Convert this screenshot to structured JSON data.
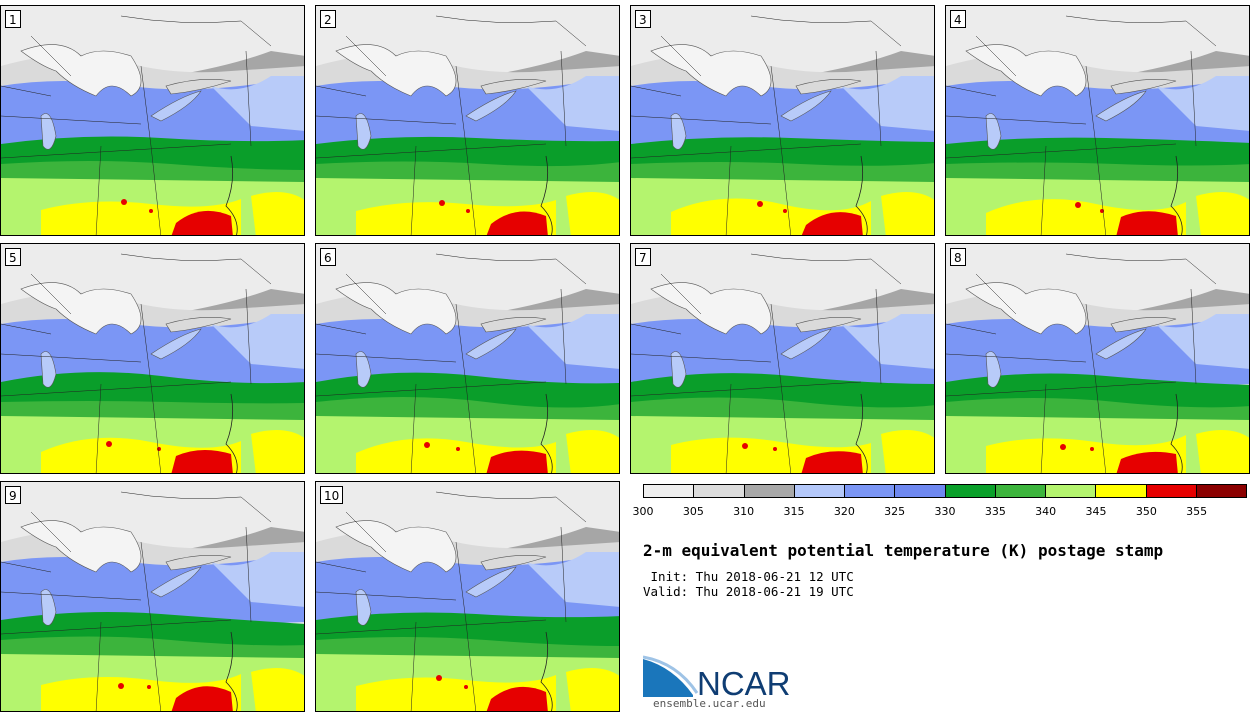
{
  "members": [
    "1",
    "2",
    "3",
    "4",
    "5",
    "6",
    "7",
    "8",
    "9",
    "10"
  ],
  "colorbar": {
    "ticks": [
      "300",
      "305",
      "310",
      "315",
      "320",
      "325",
      "330",
      "335",
      "340",
      "345",
      "350",
      "355"
    ],
    "colors": [
      "#efefef",
      "#dcdcdc",
      "#a8a8a8",
      "#b4c8fa",
      "#7b96f5",
      "#6e88f0",
      "#0aa02a",
      "#3cb43c",
      "#b4f46e",
      "#ffff00",
      "#e60000",
      "#8b0000"
    ]
  },
  "title": "2-m equivalent potential temperature (K) postage stamp",
  "init_line": " Init: Thu 2018-06-21 12 UTC",
  "valid_line": "Valid: Thu 2018-06-21 19 UTC",
  "logo": {
    "text": "NCAR",
    "url": "ensemble.ucar.edu",
    "colors": {
      "blue": "#1a76bb",
      "text": "#0f3d73"
    }
  },
  "map_colors": {
    "cold": "#ececec",
    "coolgray": "#dadada",
    "darkgray": "#a6a6a6",
    "lightblue": "#b8cbf9",
    "blue": "#7b96f5",
    "green_dark": "#0a9e2a",
    "green": "#3cb43c",
    "lightgreen": "#b4f46e",
    "yellow": "#ffff00",
    "red": "#e60000",
    "lake": "#f4f4f4"
  }
}
